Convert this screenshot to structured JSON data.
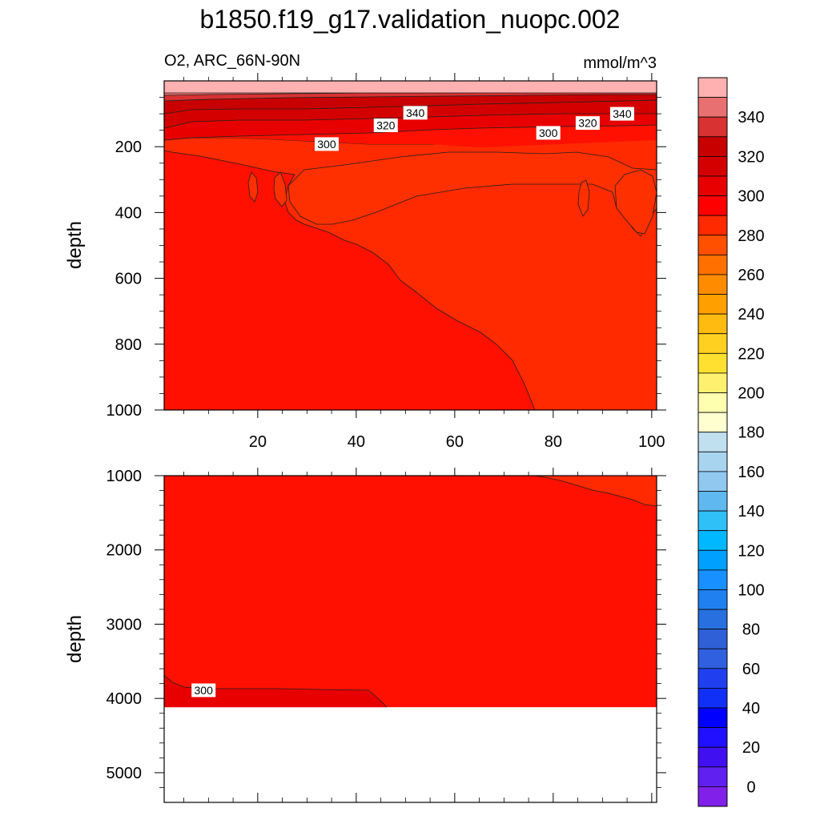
{
  "figure": {
    "title": "b1850.f19_g17.validation_nuopc.002",
    "subtitle_left": "O2, ARC_66N-90N",
    "subtitle_right": "mmol/m^3"
  },
  "chart_data": [
    {
      "type": "contour",
      "panel": "upper",
      "variable": "O2",
      "region": "ARC_66N-90N",
      "units": "mmol/m^3",
      "xlabel": "",
      "ylabel": "depth",
      "xlim": [
        1,
        101
      ],
      "ylim": [
        0,
        1000
      ],
      "y_inverted": true,
      "x_ticks": [
        20,
        40,
        60,
        80,
        100
      ],
      "y_ticks": [
        200,
        400,
        600,
        800,
        1000
      ],
      "regions": [
        {
          "level": "290-300",
          "color": "#ff1000",
          "description": "background below ~180 m, left/deep portion"
        },
        {
          "level": "280-290",
          "color": "#ff2a00",
          "description": "tongue from ~280 m at x=30 widening to x>=76 at 1000 m"
        },
        {
          "level": "300-310",
          "color": "#e80000",
          "description": "thin layer ~160-190 m"
        },
        {
          "level": "310-320",
          "color": "#d40000",
          "description": "layer ~110-160 m"
        },
        {
          "level": "320-330",
          "color": "#c80000",
          "description": "layer ~75-110 m"
        },
        {
          "level": "330-340",
          "color": "#d83232",
          "description": "layer ~60-75 m"
        },
        {
          "level": "340-350",
          "color": "#e87070",
          "description": "layer ~45-60 m"
        },
        {
          "level": ">350",
          "color": "#ffb0b0",
          "description": "surface layer 0-45 m"
        }
      ],
      "contour_labels": [
        {
          "text": "340",
          "x": 52,
          "y": 97
        },
        {
          "text": "340",
          "x": 94,
          "y": 100
        },
        {
          "text": "320",
          "x": 46,
          "y": 135
        },
        {
          "text": "320",
          "x": 87,
          "y": 128
        },
        {
          "text": "300",
          "x": 34,
          "y": 192
        },
        {
          "text": "300",
          "x": 79,
          "y": 158
        }
      ]
    },
    {
      "type": "contour",
      "panel": "lower",
      "variable": "O2",
      "region": "ARC_66N-90N",
      "units": "mmol/m^3",
      "xlabel": "",
      "ylabel": "depth",
      "xlim": [
        1,
        101
      ],
      "ylim": [
        1000,
        5400
      ],
      "y_inverted": true,
      "x_ticks": [
        20,
        40,
        60,
        80,
        100
      ],
      "y_ticks": [
        1000,
        2000,
        3000,
        4000,
        5000
      ],
      "regions": [
        {
          "level": "290-300",
          "color": "#ff1000",
          "description": "background 1000 m to bottom"
        },
        {
          "level": "280-290",
          "color": "#ff2a00",
          "description": "upper-right corner x>76, 1000-1400 m"
        },
        {
          "level": "300-310",
          "color": "#e80000",
          "description": "deep layer ~3650-4120 m, x<47"
        },
        {
          "level": "no data",
          "color": "#ffffff",
          "description": "below bathymetry ~4120 m"
        }
      ],
      "contour_labels": [
        {
          "text": "300",
          "x": 9,
          "y": 3890
        }
      ]
    }
  ],
  "colorbar": {
    "labels": [
      "340",
      "320",
      "300",
      "280",
      "260",
      "240",
      "220",
      "200",
      "180",
      "160",
      "140",
      "120",
      "100",
      "80",
      "60",
      "40",
      "20",
      "0"
    ],
    "colors_top_to_bottom": [
      "#ffb0b0",
      "#e87070",
      "#d83232",
      "#c80000",
      "#d40000",
      "#e80000",
      "#ff0000",
      "#ff2a00",
      "#ff5000",
      "#ff7000",
      "#ff8c00",
      "#ffa000",
      "#ffbb10",
      "#ffd020",
      "#ffe030",
      "#fff070",
      "#ffffb0",
      "#ffffd0",
      "#c0e0f0",
      "#a8d4f0",
      "#90c8f0",
      "#60b8f0",
      "#30c0f8",
      "#00b8ff",
      "#00a0ff",
      "#1890ff",
      "#2080f0",
      "#2870e0",
      "#3060d8",
      "#3060e0",
      "#2040f0",
      "#1030f8",
      "#0000ff",
      "#2010ff",
      "#4010f0",
      "#6020f0",
      "#8020e8"
    ]
  }
}
